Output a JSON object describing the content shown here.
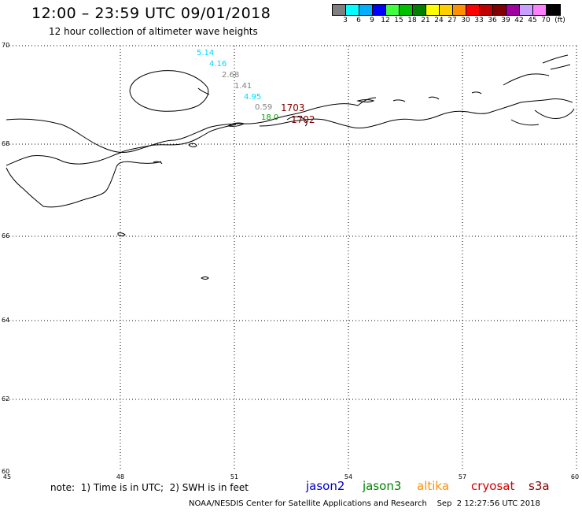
{
  "header": {
    "title": "12:00 – 23:59 UTC 09/01/2018",
    "subtitle": "12 hour collection of altimeter wave heights"
  },
  "legend": {
    "unit_label": "(ft)",
    "swatches": [
      {
        "color": "#808080",
        "label": "3"
      },
      {
        "color": "#00ffff",
        "label": "6"
      },
      {
        "color": "#00b0ff",
        "label": "9"
      },
      {
        "color": "#0000ff",
        "label": "12"
      },
      {
        "color": "#40ff40",
        "label": "15"
      },
      {
        "color": "#00c000",
        "label": "18"
      },
      {
        "color": "#008000",
        "label": "21"
      },
      {
        "color": "#ffff00",
        "label": "24"
      },
      {
        "color": "#ffd000",
        "label": "27"
      },
      {
        "color": "#ff9000",
        "label": "30"
      },
      {
        "color": "#ff0000",
        "label": "33"
      },
      {
        "color": "#c00000",
        "label": "36"
      },
      {
        "color": "#800000",
        "label": "39"
      },
      {
        "color": "#a000a0",
        "label": "42"
      },
      {
        "color": "#c8a0ff",
        "label": "45"
      },
      {
        "color": "#ff80ff",
        "label": "70"
      },
      {
        "color": "#000000",
        "label": ""
      }
    ]
  },
  "map": {
    "lat_labels": [
      "70",
      "68",
      "66",
      "64",
      "62",
      "60"
    ],
    "lon_labels": [
      "45",
      "48",
      "51",
      "54",
      "57",
      "60"
    ]
  },
  "wave_heights": [
    {
      "value": "5.14",
      "color": "#00d8ff"
    },
    {
      "value": "4.16",
      "color": "#00d8ff"
    },
    {
      "value": "2.68",
      "color": "#808080"
    },
    {
      "value": "1.41",
      "color": "#808080"
    },
    {
      "value": "4.95",
      "color": "#00d8ff"
    },
    {
      "value": "0.59",
      "color": "#808080"
    },
    {
      "value": "18.0",
      "color": "#00a000"
    }
  ],
  "track_labels": [
    {
      "value": "1703",
      "color": "#800000"
    },
    {
      "value": "1702",
      "color": "#800000"
    }
  ],
  "note": "note:  1) Time is in UTC;  2) SWH is in feet",
  "satellites": [
    {
      "name": "jason2",
      "color": "#0000c0"
    },
    {
      "name": "jason3",
      "color": "#008000"
    },
    {
      "name": "altika",
      "color": "#ff9000"
    },
    {
      "name": "cryosat",
      "color": "#d00000"
    },
    {
      "name": "s3a",
      "color": "#800000"
    }
  ],
  "footer": "NOAA/NESDIS Center for Satellite Applications and Research    Sep  2 12:27:56 UTC 2018"
}
